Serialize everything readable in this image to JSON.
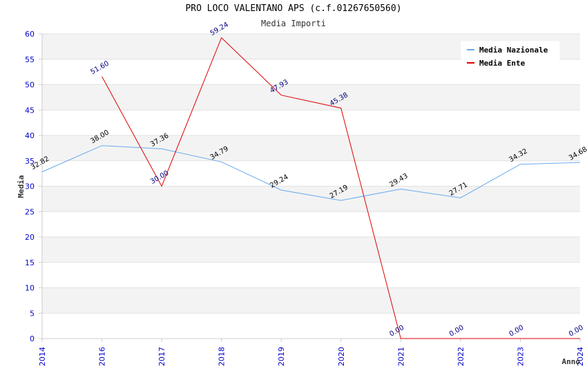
{
  "chart_data": {
    "type": "line",
    "title": "PRO LOCO VALENTANO APS (c.f.01267650560)",
    "subtitle": "Media Importi",
    "xlabel": "Anno",
    "ylabel": "Media",
    "x": [
      "2014",
      "2016",
      "2017",
      "2018",
      "2019",
      "2020",
      "2021",
      "2022",
      "2023",
      "2024"
    ],
    "ylim": [
      0,
      60
    ],
    "yticks": [
      0,
      5,
      10,
      15,
      20,
      25,
      30,
      35,
      40,
      45,
      50,
      55,
      60
    ],
    "grid": "horizontal-bands",
    "legend_position": "top-right",
    "series": [
      {
        "name": "Media Nazionale",
        "color": "#66aaee",
        "values": [
          32.82,
          38.0,
          37.36,
          34.79,
          29.24,
          27.19,
          29.43,
          27.71,
          34.32,
          34.68
        ],
        "labels": [
          "32.82",
          "38.00",
          "37.36",
          "34.79",
          "29.24",
          "27.19",
          "29.43",
          "27.71",
          "34.32",
          "34.68"
        ],
        "label_color": "#000000"
      },
      {
        "name": "Media Ente",
        "color": "#dd0000",
        "values": [
          null,
          51.6,
          30.0,
          59.24,
          47.93,
          45.38,
          0.0,
          0.0,
          0.0,
          0.0
        ],
        "labels": [
          null,
          "51.60",
          "30.00",
          "59.24",
          "47.93",
          "45.38",
          "0.00",
          "0.00",
          "0.00",
          "0.00"
        ],
        "label_color": "#000080"
      }
    ]
  }
}
